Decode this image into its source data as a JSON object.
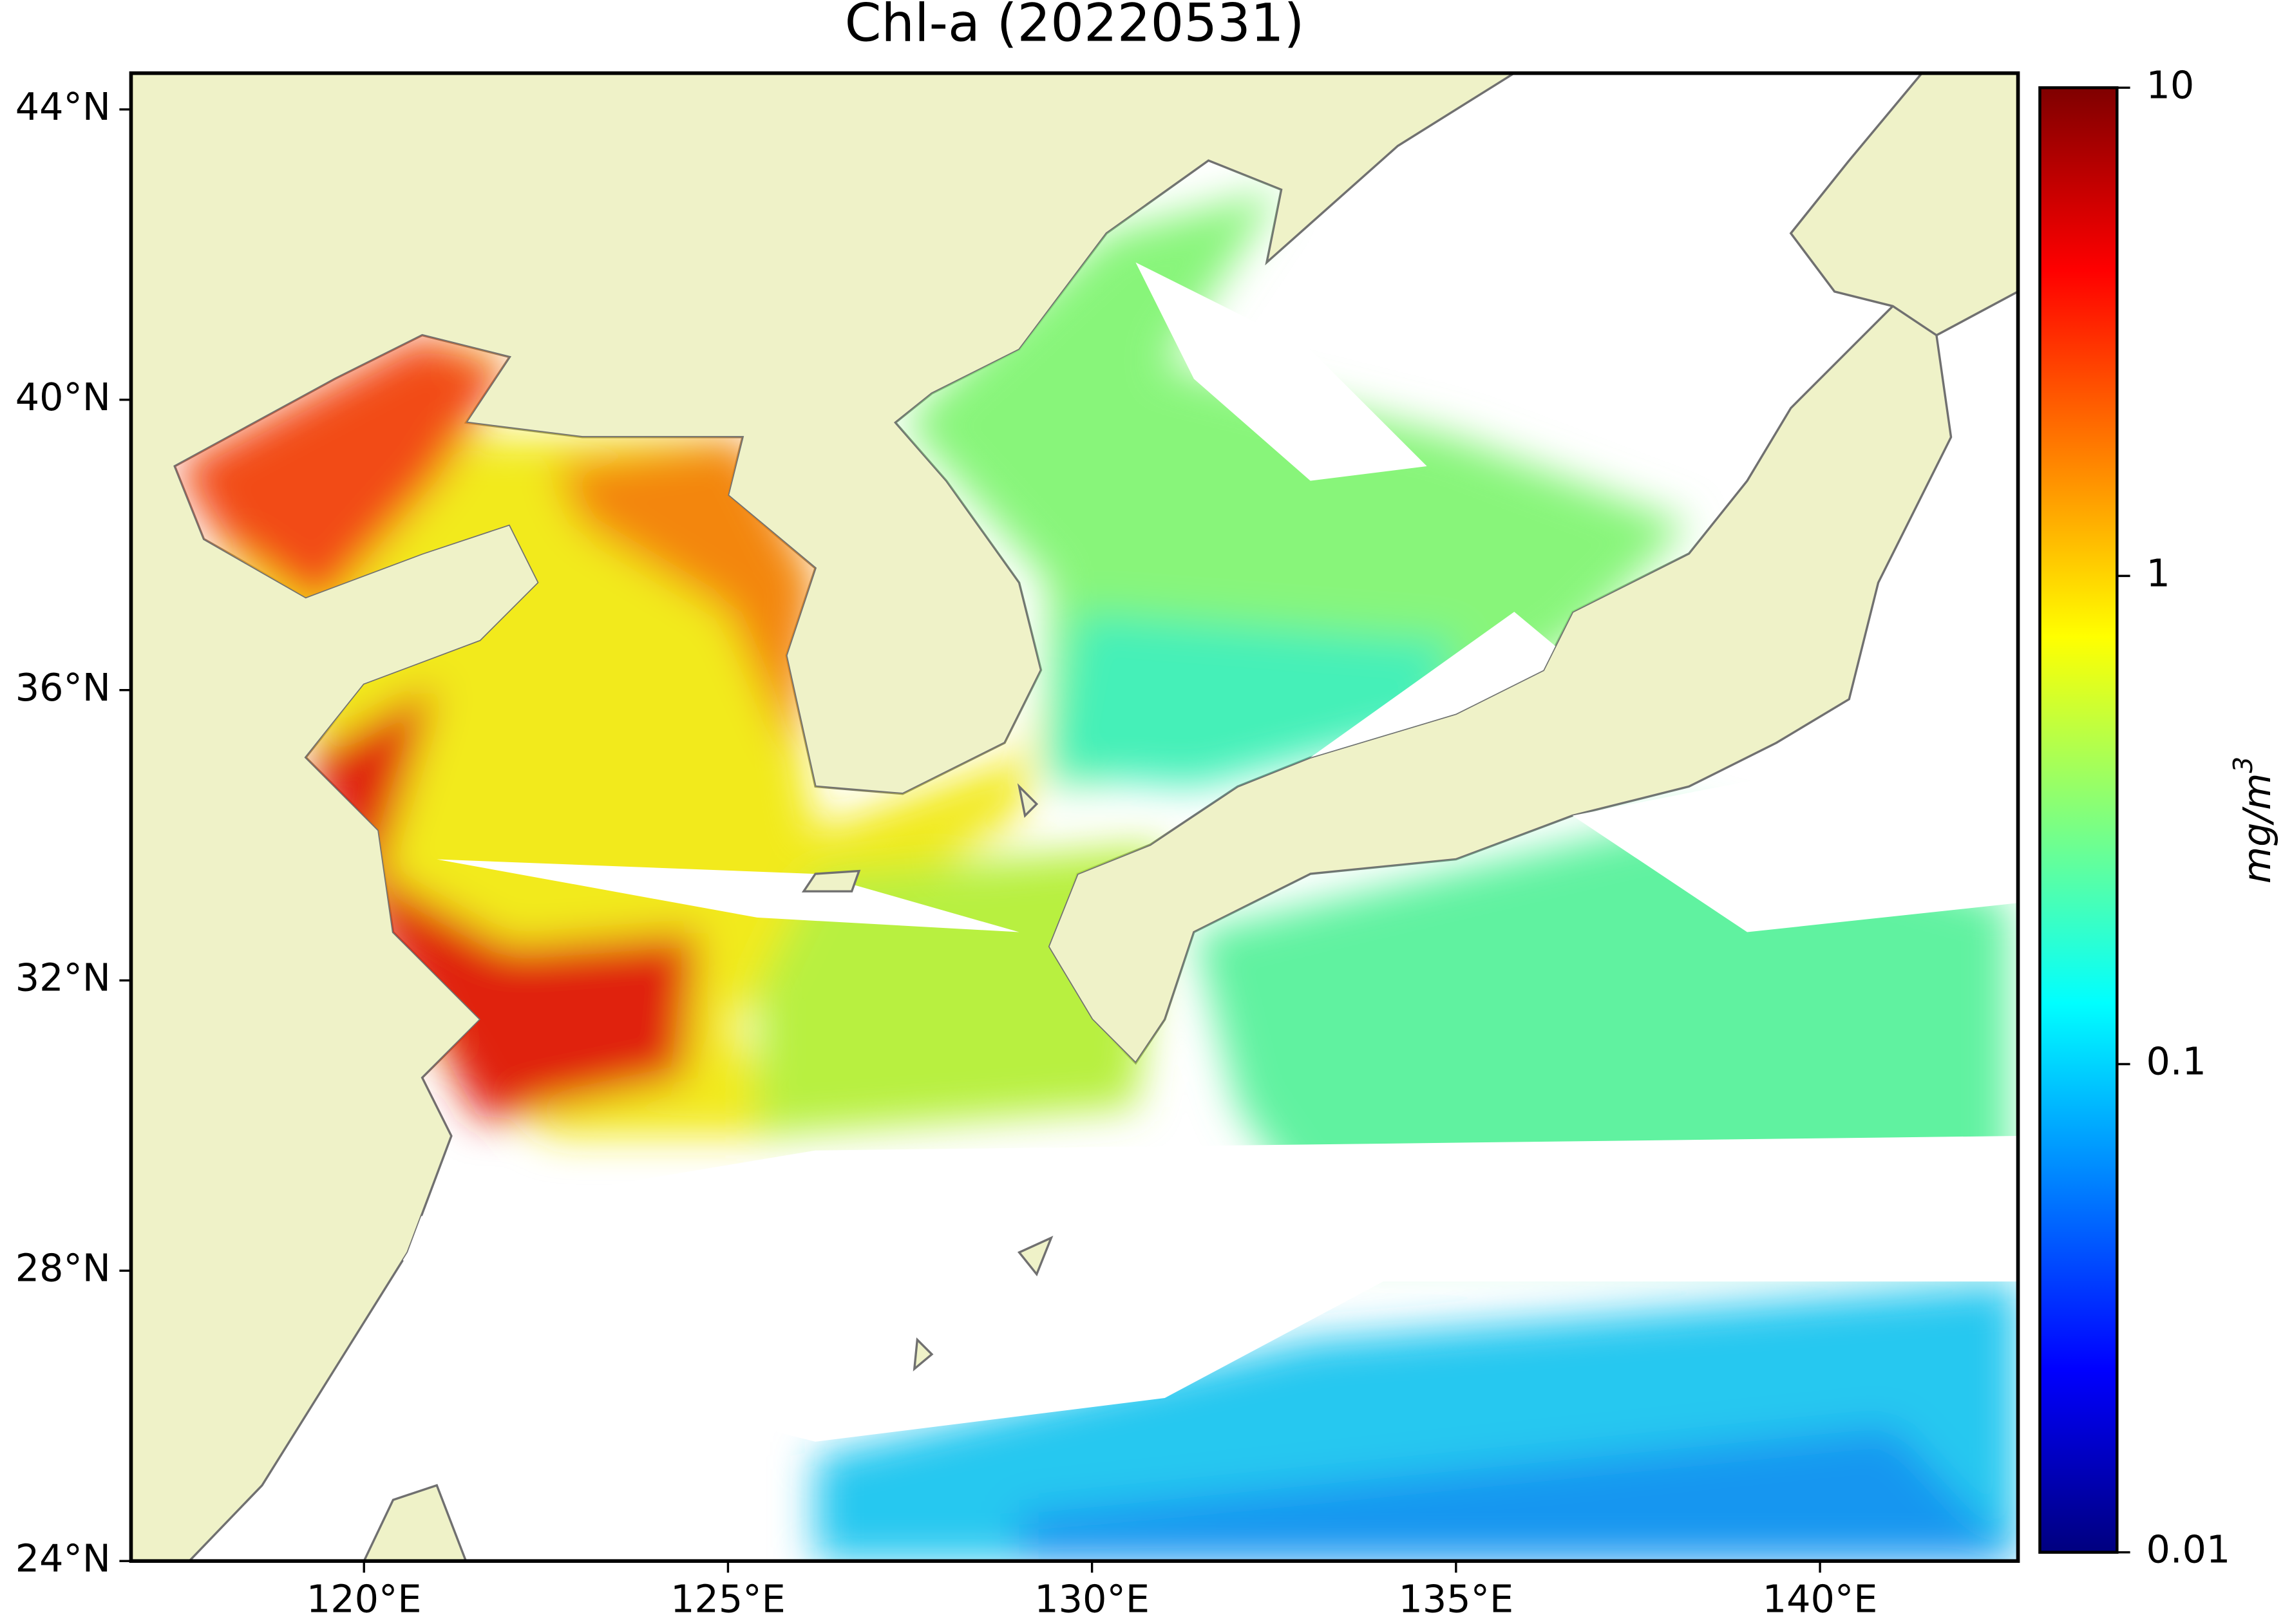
{
  "chart_data": {
    "type": "map",
    "title": "Chl-a (20220531)",
    "xlim": [
      116.8,
      142.72
    ],
    "ylim": [
      24,
      44.5
    ],
    "xticks": [
      {
        "value": 120,
        "label": "120°E"
      },
      {
        "value": 125,
        "label": "125°E"
      },
      {
        "value": 130,
        "label": "130°E"
      },
      {
        "value": 135,
        "label": "135°E"
      },
      {
        "value": 140,
        "label": "140°E"
      }
    ],
    "yticks": [
      {
        "value": 24,
        "label": "24°N"
      },
      {
        "value": 28,
        "label": "28°N"
      },
      {
        "value": 32,
        "label": "32°N"
      },
      {
        "value": 36,
        "label": "36°N"
      },
      {
        "value": 40,
        "label": "40°N"
      },
      {
        "value": 44,
        "label": "44°N"
      }
    ],
    "colorbar": {
      "scale": "log",
      "lim": [
        0.01,
        10
      ],
      "ticks": [
        0.01,
        0.1,
        1,
        10
      ],
      "colormap": [
        "#00007f",
        "#0000ff",
        "#007fff",
        "#00ffff",
        "#7fff7f",
        "#ffff00",
        "#ff7f00",
        "#ff0000",
        "#7f0000"
      ],
      "label": {
        "text": "mg/m",
        "superscript": "3"
      }
    }
  }
}
